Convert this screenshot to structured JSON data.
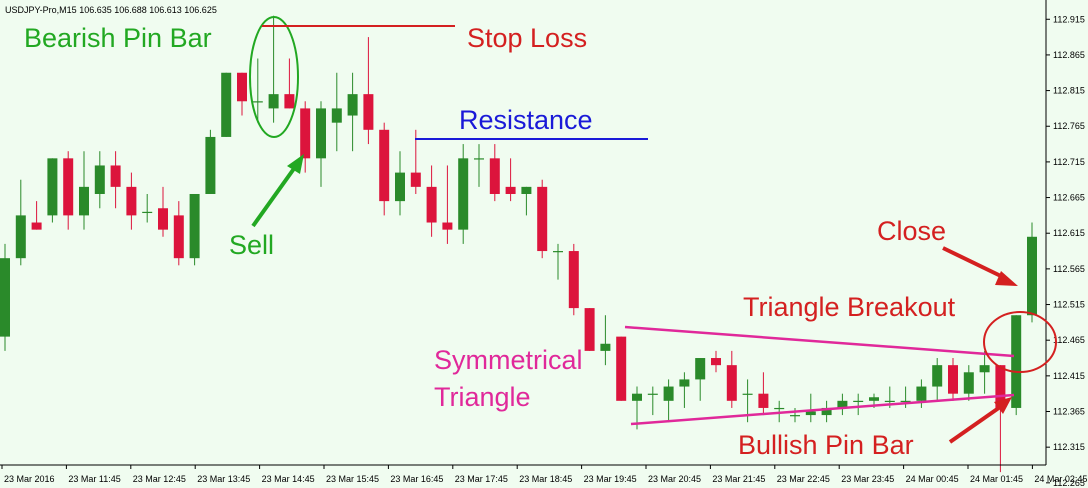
{
  "chart_data": {
    "type": "candlestick",
    "header": "USDJPY-Pro,M15  106.635 106.688 106.613 106.625",
    "ylim": [
      112.29,
      112.935
    ],
    "y_ticks": [
      "112.915",
      "112.865",
      "112.815",
      "112.765",
      "112.715",
      "112.665",
      "112.615",
      "112.565",
      "112.515",
      "112.465",
      "112.415",
      "112.365",
      "112.315",
      "112.265"
    ],
    "x_ticks": [
      "23 Mar 2016",
      "23 Mar 11:45",
      "23 Mar 12:45",
      "23 Mar 13:45",
      "23 Mar 14:45",
      "23 Mar 15:45",
      "23 Mar 16:45",
      "23 Mar 17:45",
      "23 Mar 18:45",
      "23 Mar 19:45",
      "23 Mar 20:45",
      "23 Mar 21:45",
      "23 Mar 22:45",
      "23 Mar 23:45",
      "24 Mar 00:45",
      "24 Mar 01:45",
      "24 Mar 02:45"
    ],
    "colors": {
      "bull": "#2a8a2a",
      "bear": "#dc143c",
      "background": "#f0fcf0",
      "axis": "#000000"
    },
    "candles": [
      {
        "o": 112.47,
        "h": 112.6,
        "l": 112.45,
        "c": 112.58
      },
      {
        "o": 112.58,
        "h": 112.69,
        "l": 112.57,
        "c": 112.64
      },
      {
        "o": 112.63,
        "h": 112.66,
        "l": 112.62,
        "c": 112.62
      },
      {
        "o": 112.64,
        "h": 112.72,
        "l": 112.63,
        "c": 112.72
      },
      {
        "o": 112.72,
        "h": 112.73,
        "l": 112.62,
        "c": 112.64
      },
      {
        "o": 112.64,
        "h": 112.73,
        "l": 112.62,
        "c": 112.68
      },
      {
        "o": 112.67,
        "h": 112.73,
        "l": 112.65,
        "c": 112.71
      },
      {
        "o": 112.71,
        "h": 112.73,
        "l": 112.65,
        "c": 112.68
      },
      {
        "o": 112.68,
        "h": 112.7,
        "l": 112.62,
        "c": 112.64
      },
      {
        "o": 112.645,
        "h": 112.67,
        "l": 112.63,
        "c": 112.645
      },
      {
        "o": 112.65,
        "h": 112.68,
        "l": 112.61,
        "c": 112.62
      },
      {
        "o": 112.64,
        "h": 112.66,
        "l": 112.57,
        "c": 112.58
      },
      {
        "o": 112.58,
        "h": 112.67,
        "l": 112.57,
        "c": 112.67
      },
      {
        "o": 112.67,
        "h": 112.76,
        "l": 112.67,
        "c": 112.75
      },
      {
        "o": 112.75,
        "h": 112.84,
        "l": 112.75,
        "c": 112.84
      },
      {
        "o": 112.84,
        "h": 112.84,
        "l": 112.78,
        "c": 112.8
      },
      {
        "o": 112.8,
        "h": 112.86,
        "l": 112.77,
        "c": 112.8
      },
      {
        "o": 112.79,
        "h": 112.92,
        "l": 112.77,
        "c": 112.81
      },
      {
        "o": 112.81,
        "h": 112.86,
        "l": 112.79,
        "c": 112.79
      },
      {
        "o": 112.79,
        "h": 112.8,
        "l": 112.7,
        "c": 112.72
      },
      {
        "o": 112.72,
        "h": 112.8,
        "l": 112.68,
        "c": 112.79
      },
      {
        "o": 112.77,
        "h": 112.84,
        "l": 112.73,
        "c": 112.79
      },
      {
        "o": 112.78,
        "h": 112.84,
        "l": 112.73,
        "c": 112.81
      },
      {
        "o": 112.81,
        "h": 112.89,
        "l": 112.74,
        "c": 112.76
      },
      {
        "o": 112.76,
        "h": 112.77,
        "l": 112.64,
        "c": 112.66
      },
      {
        "o": 112.66,
        "h": 112.73,
        "l": 112.64,
        "c": 112.7
      },
      {
        "o": 112.7,
        "h": 112.76,
        "l": 112.67,
        "c": 112.68
      },
      {
        "o": 112.68,
        "h": 112.71,
        "l": 112.61,
        "c": 112.63
      },
      {
        "o": 112.63,
        "h": 112.71,
        "l": 112.6,
        "c": 112.62
      },
      {
        "o": 112.62,
        "h": 112.74,
        "l": 112.6,
        "c": 112.72
      },
      {
        "o": 112.72,
        "h": 112.74,
        "l": 112.68,
        "c": 112.72
      },
      {
        "o": 112.72,
        "h": 112.74,
        "l": 112.66,
        "c": 112.67
      },
      {
        "o": 112.68,
        "h": 112.72,
        "l": 112.66,
        "c": 112.67
      },
      {
        "o": 112.67,
        "h": 112.68,
        "l": 112.64,
        "c": 112.68
      },
      {
        "o": 112.68,
        "h": 112.69,
        "l": 112.58,
        "c": 112.59
      },
      {
        "o": 112.59,
        "h": 112.6,
        "l": 112.55,
        "c": 112.59
      },
      {
        "o": 112.59,
        "h": 112.6,
        "l": 112.5,
        "c": 112.51
      },
      {
        "o": 112.51,
        "h": 112.51,
        "l": 112.45,
        "c": 112.45
      },
      {
        "o": 112.45,
        "h": 112.5,
        "l": 112.43,
        "c": 112.46
      },
      {
        "o": 112.47,
        "h": 112.47,
        "l": 112.38,
        "c": 112.38
      },
      {
        "o": 112.38,
        "h": 112.4,
        "l": 112.34,
        "c": 112.39
      },
      {
        "o": 112.39,
        "h": 112.4,
        "l": 112.36,
        "c": 112.39
      },
      {
        "o": 112.38,
        "h": 112.41,
        "l": 112.35,
        "c": 112.4
      },
      {
        "o": 112.4,
        "h": 112.42,
        "l": 112.37,
        "c": 112.41
      },
      {
        "o": 112.41,
        "h": 112.44,
        "l": 112.38,
        "c": 112.44
      },
      {
        "o": 112.44,
        "h": 112.45,
        "l": 112.42,
        "c": 112.43
      },
      {
        "o": 112.43,
        "h": 112.45,
        "l": 112.37,
        "c": 112.38
      },
      {
        "o": 112.39,
        "h": 112.41,
        "l": 112.35,
        "c": 112.39
      },
      {
        "o": 112.39,
        "h": 112.42,
        "l": 112.36,
        "c": 112.37
      },
      {
        "o": 112.37,
        "h": 112.38,
        "l": 112.35,
        "c": 112.37
      },
      {
        "o": 112.36,
        "h": 112.37,
        "l": 112.35,
        "c": 112.36
      },
      {
        "o": 112.36,
        "h": 112.39,
        "l": 112.35,
        "c": 112.365
      },
      {
        "o": 112.36,
        "h": 112.38,
        "l": 112.35,
        "c": 112.37
      },
      {
        "o": 112.37,
        "h": 112.39,
        "l": 112.36,
        "c": 112.38
      },
      {
        "o": 112.38,
        "h": 112.39,
        "l": 112.36,
        "c": 112.38
      },
      {
        "o": 112.38,
        "h": 112.39,
        "l": 112.37,
        "c": 112.385
      },
      {
        "o": 112.38,
        "h": 112.4,
        "l": 112.37,
        "c": 112.38
      },
      {
        "o": 112.38,
        "h": 112.4,
        "l": 112.37,
        "c": 112.38
      },
      {
        "o": 112.38,
        "h": 112.41,
        "l": 112.37,
        "c": 112.4
      },
      {
        "o": 112.4,
        "h": 112.44,
        "l": 112.38,
        "c": 112.43
      },
      {
        "o": 112.43,
        "h": 112.44,
        "l": 112.38,
        "c": 112.39
      },
      {
        "o": 112.39,
        "h": 112.43,
        "l": 112.38,
        "c": 112.42
      },
      {
        "o": 112.42,
        "h": 112.45,
        "l": 112.39,
        "c": 112.43
      },
      {
        "o": 112.43,
        "h": 112.43,
        "l": 112.28,
        "c": 112.37
      },
      {
        "o": 112.37,
        "h": 112.5,
        "l": 112.36,
        "c": 112.5
      },
      {
        "o": 112.5,
        "h": 112.63,
        "l": 112.49,
        "c": 112.61
      }
    ],
    "annotations": {
      "bearish_pin_bar": "Bearish Pin Bar",
      "stop_loss": "Stop Loss",
      "resistance": "Resistance",
      "sell": "Sell",
      "close": "Close",
      "triangle_breakout": "Triangle Breakout",
      "symmetrical_triangle_1": "Symmetrical",
      "symmetrical_triangle_2": "Triangle",
      "bullish_pin_bar": "Bullish Pin Bar"
    },
    "annotation_colors": {
      "green": "#22a822",
      "red": "#d42020",
      "blue": "#1a1ad8",
      "magenta": "#e0289a"
    }
  }
}
